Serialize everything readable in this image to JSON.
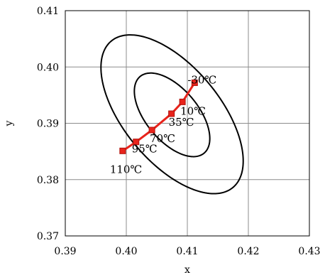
{
  "chart_data": {
    "type": "scatter",
    "title": "",
    "xlabel": "x",
    "ylabel": "y",
    "xlim": [
      0.39,
      0.43
    ],
    "ylim": [
      0.37,
      0.41
    ],
    "x_ticks": [
      "0.39",
      "0.40",
      "0.41",
      "0.42",
      "0.43"
    ],
    "y_ticks": [
      "0.37",
      "0.38",
      "0.39",
      "0.40",
      "0.41"
    ],
    "grid": true,
    "legend": "none",
    "series": [
      {
        "color": "#e8231b",
        "marker_color": "#e8231b",
        "points": [
          {
            "x": 0.3994,
            "y": 0.3851,
            "label": "110℃"
          },
          {
            "x": 0.4016,
            "y": 0.3867,
            "label": "95℃"
          },
          {
            "x": 0.4042,
            "y": 0.3888,
            "label": "70℃"
          },
          {
            "x": 0.4074,
            "y": 0.3917,
            "label": "35℃"
          },
          {
            "x": 0.4092,
            "y": 0.3938,
            "label": "10℃"
          },
          {
            "x": 0.4112,
            "y": 0.3972,
            "label": "-30℃"
          }
        ]
      }
    ],
    "ellipses": [
      {
        "cx": 0.4075,
        "cy": 0.3915,
        "rx": 0.0044,
        "ry": 0.0086,
        "rotation_deg": 36
      },
      {
        "cx": 0.4075,
        "cy": 0.3916,
        "rx": 0.0081,
        "ry": 0.0164,
        "rotation_deg": 36
      }
    ]
  }
}
